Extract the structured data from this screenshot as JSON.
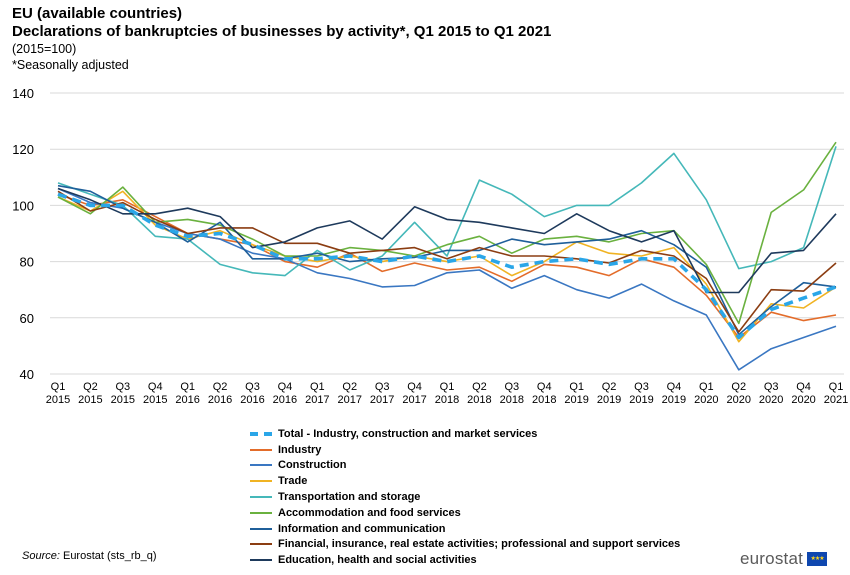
{
  "header": {
    "title": "EU (available countries)",
    "subtitle": "Declarations of bankruptcies of businesses by activity*, Q1 2015 to Q1 2021",
    "unit_note": "(2015=100)",
    "footnote": "*Seasonally adjusted"
  },
  "footer": {
    "source_label": "Source:",
    "source_text": " Eurostat (sts_rb_q)",
    "logo_text": "eurostat",
    "flag_icon": "eu-flag-icon"
  },
  "chart_data": {
    "type": "line",
    "title": "Declarations of bankruptcies of businesses by activity*, Q1 2015 to Q1 2021",
    "xlabel": "",
    "ylabel": "",
    "ylim": [
      40,
      140
    ],
    "yticks": [
      40,
      60,
      80,
      100,
      120,
      140
    ],
    "grid": true,
    "legend_position": "bottom",
    "categories": [
      [
        "Q1",
        "2015"
      ],
      [
        "Q2",
        "2015"
      ],
      [
        "Q3",
        "2015"
      ],
      [
        "Q4",
        "2015"
      ],
      [
        "Q1",
        "2016"
      ],
      [
        "Q2",
        "2016"
      ],
      [
        "Q3",
        "2016"
      ],
      [
        "Q4",
        "2016"
      ],
      [
        "Q1",
        "2017"
      ],
      [
        "Q2",
        "2017"
      ],
      [
        "Q3",
        "2017"
      ],
      [
        "Q4",
        "2017"
      ],
      [
        "Q1",
        "2018"
      ],
      [
        "Q2",
        "2018"
      ],
      [
        "Q3",
        "2018"
      ],
      [
        "Q4",
        "2018"
      ],
      [
        "Q1",
        "2019"
      ],
      [
        "Q2",
        "2019"
      ],
      [
        "Q3",
        "2019"
      ],
      [
        "Q4",
        "2019"
      ],
      [
        "Q1",
        "2020"
      ],
      [
        "Q2",
        "2020"
      ],
      [
        "Q3",
        "2020"
      ],
      [
        "Q4",
        "2020"
      ],
      [
        "Q1",
        "2021"
      ]
    ],
    "series": [
      {
        "name": "Industry",
        "color": "#e36c2a",
        "width": 1.6,
        "dash": "",
        "values": [
          104,
          100,
          102,
          96,
          90,
          88,
          86,
          80,
          78,
          83,
          76.5,
          79.5,
          77,
          78,
          73,
          79,
          78,
          75,
          81,
          78,
          68,
          53,
          62,
          59,
          61
        ]
      },
      {
        "name": "Construction",
        "color": "#3a77c2",
        "width": 1.6,
        "dash": "",
        "values": [
          106,
          101,
          99,
          94,
          90,
          88,
          83,
          81,
          76,
          74,
          71,
          71.5,
          76,
          77,
          70.5,
          75,
          70,
          67,
          72,
          66,
          61,
          41.5,
          49,
          53,
          57
        ]
      },
      {
        "name": "Trade",
        "color": "#f0b323",
        "width": 1.6,
        "dash": "",
        "values": [
          103,
          98,
          105,
          93,
          88,
          91,
          86,
          82,
          80,
          82,
          80,
          82,
          80,
          82,
          75,
          80,
          87,
          83,
          82,
          85,
          72,
          51.5,
          65,
          63.5,
          71
        ]
      },
      {
        "name": "Transportation and storage",
        "color": "#45b8b9",
        "width": 1.6,
        "dash": "",
        "values": [
          108,
          104,
          100,
          89,
          88,
          79,
          76,
          75,
          84,
          77,
          82,
          94,
          82,
          109,
          104,
          96,
          100,
          100,
          108,
          118.5,
          102,
          77.5,
          80,
          85,
          121
        ]
      },
      {
        "name": "Accommodation and food services",
        "color": "#6ab13f",
        "width": 1.6,
        "dash": "",
        "values": [
          103,
          97,
          106.5,
          94,
          95,
          93,
          88,
          82,
          82,
          85,
          84,
          82,
          86,
          89,
          83,
          88,
          89,
          87,
          90,
          91,
          79,
          58,
          97.5,
          105.5,
          122.5
        ]
      },
      {
        "name": "Information and communication",
        "color": "#1f5f9a",
        "width": 1.6,
        "dash": "",
        "values": [
          107,
          105,
          99,
          94,
          87,
          94,
          81,
          81,
          83,
          80,
          81,
          81.5,
          84,
          84,
          88,
          86,
          87,
          88,
          91,
          86,
          78,
          54,
          64,
          72.5,
          71
        ]
      },
      {
        "name": "Financial, insurance, real estate activities; professional and support services",
        "color": "#8b3d12",
        "width": 1.6,
        "dash": "",
        "values": [
          105,
          98,
          101,
          95,
          90,
          92,
          92,
          86.5,
          86.5,
          83,
          84,
          85,
          81,
          85,
          82,
          82,
          81,
          79.5,
          84,
          82,
          74,
          55,
          70,
          69.5,
          79.5
        ]
      },
      {
        "name": "Education,  health and social activities",
        "color": "#1e3a5c",
        "width": 1.6,
        "dash": "",
        "values": [
          106,
          102,
          97,
          97,
          99,
          96,
          85,
          87,
          92,
          94.5,
          88,
          99.5,
          95,
          94,
          92,
          90,
          97,
          91,
          87,
          91,
          69,
          69,
          83,
          84,
          97
        ]
      },
      {
        "name": "Total - Industry, construction and market services",
        "color": "#2aa6e8",
        "width": 3.6,
        "dash": "9,6",
        "values": [
          104,
          100,
          100,
          93,
          89,
          90,
          86,
          81,
          81,
          82,
          80,
          82,
          80,
          82,
          78,
          80,
          81,
          79,
          81,
          81,
          70,
          53,
          63,
          67,
          71
        ]
      }
    ],
    "legend_order": [
      8,
      0,
      1,
      2,
      3,
      4,
      5,
      6,
      7
    ]
  }
}
